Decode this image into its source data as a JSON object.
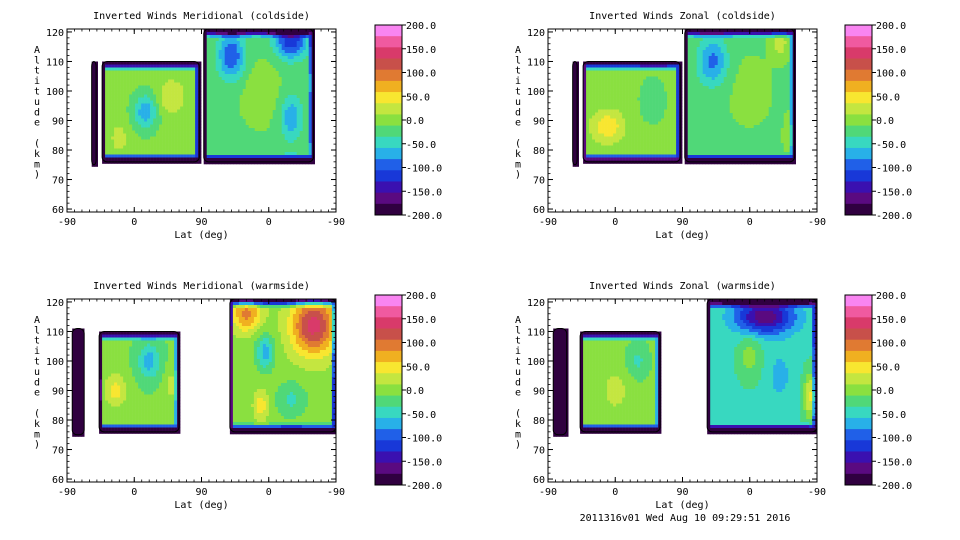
{
  "footer": "2011316v01 Wed Aug 10 09:29:51 2016",
  "colorbar": {
    "ticks": [
      "200.0",
      "150.0",
      "100.0",
      "50.0",
      "0.0",
      "-50.0",
      "-100.0",
      "-150.0",
      "-200.0"
    ],
    "colors": [
      "#f985f1",
      "#f05aa0",
      "#d93a6a",
      "#c8504a",
      "#e07a32",
      "#f0b020",
      "#f8e630",
      "#c4e640",
      "#8ae040",
      "#50d878",
      "#38d8c0",
      "#28b0e8",
      "#2060e8",
      "#1838d8",
      "#3a10b0",
      "#5a0a80",
      "#300040"
    ]
  },
  "chart_data": [
    {
      "type": "heatmap",
      "title": "Inverted Winds Meridional (coldside)",
      "xlabel": "Lat (deg)",
      "ylabel": "Altitude (km)",
      "xticks": [
        "-90",
        "0",
        "90",
        "0",
        "-90"
      ],
      "yticks": [
        "60",
        "70",
        "80",
        "90",
        "100",
        "110",
        "120"
      ],
      "ylim": [
        59,
        121
      ],
      "zlim": [
        -200,
        200
      ],
      "segments": [
        {
          "x": [
            -57,
            -51
          ],
          "y": [
            75,
            110
          ],
          "base": -220,
          "blobs": [
            [
              -54,
              92,
              0,
              3,
              12,
              60
            ]
          ]
        },
        {
          "x": [
            -43,
            87
          ],
          "y": [
            76,
            110
          ],
          "base": -5,
          "blobs": [
            [
              15,
              93,
              -70,
              16,
              6,
              55
            ],
            [
              50,
              98,
              40,
              18,
              6,
              40
            ],
            [
              -20,
              84,
              30,
              12,
              5,
              35
            ]
          ]
        },
        {
          "x": [
            93,
            240
          ],
          "y": [
            76,
            121
          ],
          "base": -15,
          "blobs": [
            [
              130,
              112,
              -90,
              18,
              8,
              50
            ],
            [
              210,
              91,
              -60,
              15,
              8,
              45
            ],
            [
              170,
              100,
              20,
              25,
              10,
              35
            ],
            [
              210,
              117,
              -110,
              22,
              6,
              50
            ]
          ]
        }
      ]
    },
    {
      "type": "heatmap",
      "title": "Inverted Winds Zonal (coldside)",
      "xlabel": "Lat (deg)",
      "ylabel": "Altitude (km)",
      "xticks": [
        "-90",
        "0",
        "90",
        "0",
        "-90"
      ],
      "yticks": [
        "60",
        "70",
        "80",
        "90",
        "100",
        "110",
        "120"
      ],
      "ylim": [
        59,
        121
      ],
      "zlim": [
        -200,
        200
      ],
      "segments": [
        {
          "x": [
            -57,
            -51
          ],
          "y": [
            75,
            110
          ],
          "base": -150,
          "blobs": [
            [
              -54,
              92,
              -30,
              3,
              12,
              60
            ]
          ]
        },
        {
          "x": [
            -43,
            87
          ],
          "y": [
            76,
            110
          ],
          "base": 0,
          "blobs": [
            [
              -10,
              88,
              55,
              20,
              5,
              45
            ],
            [
              50,
              97,
              -35,
              18,
              8,
              40
            ]
          ]
        },
        {
          "x": [
            93,
            240
          ],
          "y": [
            76,
            121
          ],
          "base": -15,
          "blobs": [
            [
              130,
              110,
              -75,
              20,
              8,
              45
            ],
            [
              220,
              116,
              40,
              12,
              5,
              35
            ],
            [
              180,
              100,
              15,
              25,
              10,
              30
            ],
            [
              235,
              85,
              30,
              8,
              6,
              25
            ]
          ]
        }
      ]
    },
    {
      "type": "heatmap",
      "title": "Inverted Winds Meridional (warmside)",
      "xlabel": "Lat (deg)",
      "ylabel": "Altitude (km)",
      "xticks": [
        "-90",
        "0",
        "90",
        "0",
        "-90"
      ],
      "yticks": [
        "60",
        "70",
        "80",
        "90",
        "100",
        "110",
        "120"
      ],
      "ylim": [
        59,
        121
      ],
      "zlim": [
        -200,
        200
      ],
      "segments": [
        {
          "x": [
            -83,
            -67
          ],
          "y": [
            75,
            111
          ],
          "base": -190,
          "blobs": [
            [
              -75,
              92,
              -50,
              5,
              10,
              60
            ]
          ]
        },
        {
          "x": [
            -47,
            60
          ],
          "y": [
            76,
            110
          ],
          "base": -10,
          "blobs": [
            [
              -25,
              90,
              55,
              15,
              6,
              40
            ],
            [
              20,
              100,
              -60,
              15,
              6,
              45
            ],
            [
              50,
              92,
              30,
              10,
              6,
              30
            ]
          ]
        },
        {
          "x": [
            128,
            270
          ],
          "y": [
            76,
            121
          ],
          "base": 0,
          "blobs": [
            [
              240,
              112,
              140,
              30,
              10,
              60
            ],
            [
              150,
              116,
              90,
              20,
              6,
              50
            ],
            [
              175,
              103,
              -70,
              12,
              6,
              45
            ],
            [
              210,
              87,
              -40,
              20,
              6,
              35
            ],
            [
              170,
              85,
              50,
              10,
              5,
              30
            ]
          ]
        }
      ]
    },
    {
      "type": "heatmap",
      "title": "Inverted Winds Zonal (warmside)",
      "xlabel": "Lat (deg)",
      "ylabel": "Altitude (km)",
      "xticks": [
        "-90",
        "0",
        "90",
        "0",
        "-90"
      ],
      "yticks": [
        "60",
        "70",
        "80",
        "90",
        "100",
        "110",
        "120"
      ],
      "ylim": [
        59,
        121
      ],
      "zlim": [
        -200,
        200
      ],
      "segments": [
        {
          "x": [
            -83,
            -65
          ],
          "y": [
            75,
            111
          ],
          "base": -200,
          "blobs": [
            [
              -74,
              92,
              -20,
              5,
              10,
              60
            ]
          ]
        },
        {
          "x": [
            -47,
            60
          ],
          "y": [
            76,
            110
          ],
          "base": -5,
          "blobs": [
            [
              0,
              90,
              25,
              20,
              8,
              35
            ],
            [
              30,
              100,
              -35,
              15,
              6,
              35
            ]
          ]
        },
        {
          "x": [
            123,
            270
          ],
          "y": [
            76,
            121
          ],
          "base": -40,
          "blobs": [
            [
              200,
              115,
              -130,
              40,
              6,
              50
            ],
            [
              180,
              102,
              40,
              15,
              8,
              40
            ],
            [
              260,
              88,
              80,
              8,
              8,
              40
            ],
            [
              220,
              95,
              -30,
              15,
              8,
              30
            ]
          ]
        }
      ]
    }
  ]
}
